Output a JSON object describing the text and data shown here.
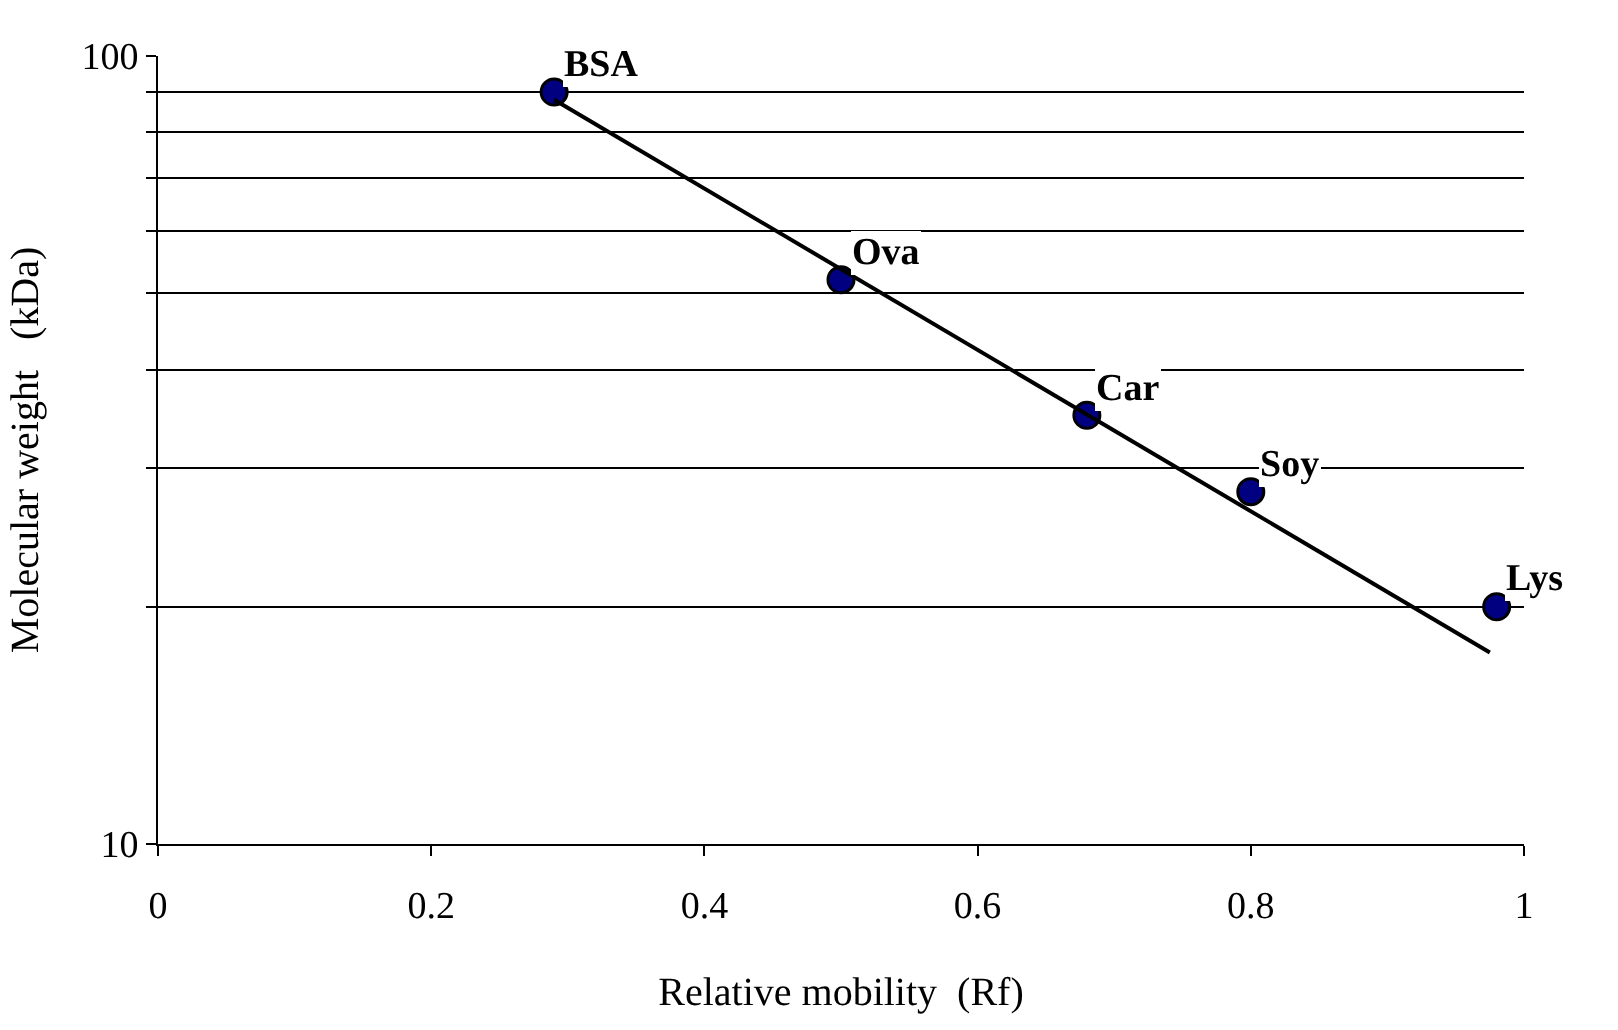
{
  "chart_data": {
    "type": "scatter",
    "xlabel": "Relative mobility  (Rf)",
    "ylabel": "Molecular weight   (kDa)",
    "log": "y",
    "grid": "y",
    "legend": false,
    "xlim": [
      0,
      1
    ],
    "xticks": [
      0,
      0.2,
      0.4,
      0.6,
      0.8,
      1
    ],
    "ylim": [
      10,
      100
    ],
    "yticks": [
      10,
      {
        "value": 20,
        "label": null
      },
      {
        "value": 30,
        "label": null
      },
      {
        "value": 40,
        "label": null
      },
      {
        "value": 50,
        "label": null
      },
      {
        "value": 60,
        "label": null
      },
      {
        "value": 70,
        "label": null
      },
      {
        "value": 80,
        "label": null
      },
      {
        "value": 90,
        "label": null
      },
      100
    ],
    "series": [
      {
        "marker": "circle",
        "color": "#000080",
        "x": [
          0.29,
          0.5,
          0.68,
          0.8,
          0.98
        ],
        "values": [
          90,
          52,
          35,
          28,
          20
        ]
      },
      {
        "type": "line",
        "color": "#000000",
        "x": [
          0.29,
          0.975
        ],
        "values": [
          88,
          17.5
        ],
        "line_style": "solid"
      }
    ],
    "annotations": [
      {
        "text": "BSA",
        "x": 0.29,
        "y": 90
      },
      {
        "text": "Ova",
        "x": 0.5,
        "y": 52
      },
      {
        "text": "Car",
        "x": 0.68,
        "y": 35
      },
      {
        "text": "Soy",
        "x": 0.8,
        "y": 28
      },
      {
        "text": "Lys",
        "x": 0.98,
        "y": 20
      }
    ]
  }
}
